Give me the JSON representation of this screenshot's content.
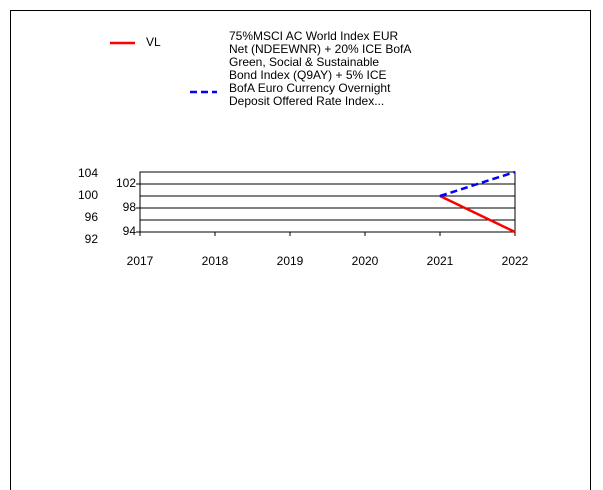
{
  "chart_data": {
    "type": "line",
    "x": [
      2021,
      2022
    ],
    "series": [
      {
        "name": "VL",
        "color": "#ff0000",
        "dash": false,
        "values": [
          100,
          94
        ]
      },
      {
        "name": "75%MSCI AC World Index EUR\nNet (NDEEWNR) + 20% ICE BofA\nGreen, Social & Sustainable\nBond Index (Q9AY) + 5% ICE\nBofA Euro Currency Overnight\nDeposit Offered Rate Index...",
        "color": "#0000ff",
        "dash": true,
        "values": [
          100,
          104
        ]
      }
    ],
    "xlim": [
      2017,
      2022
    ],
    "xticks": [
      2017,
      2018,
      2019,
      2020,
      2021,
      2022
    ],
    "ylim": [
      94,
      104
    ],
    "yticks": [
      94,
      98,
      102
    ],
    "y2lim": [
      92,
      104
    ],
    "y2ticks": [
      92,
      96,
      100,
      104
    ],
    "grid": true
  }
}
